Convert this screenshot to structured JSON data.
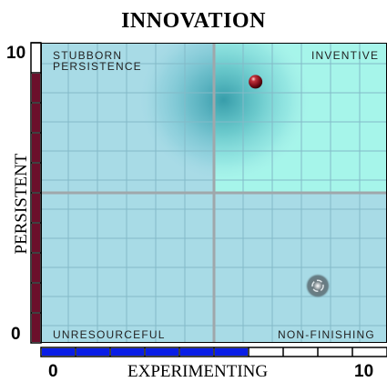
{
  "chart_data": {
    "type": "scatter",
    "title": "INNOVATION",
    "xlabel": "EXPERIMENTING",
    "ylabel": "PERSISTENT",
    "xlim": [
      0,
      10
    ],
    "ylim": [
      0,
      10
    ],
    "x_tick_labels": [
      "0",
      "10"
    ],
    "y_tick_labels": [
      "0",
      "10"
    ],
    "grid": true,
    "quadrants": {
      "top_left": [
        "STUBBORN",
        "PERSISTENCE"
      ],
      "top_right": "INVENTIVE",
      "bottom_left": "UNRESOURCEFUL",
      "bottom_right": "NON-FINISHING"
    },
    "highlighted_quadrant": "top_right",
    "points": [
      {
        "x": 6.2,
        "y": 8.7,
        "marker": "sphere",
        "color": "#8b1020"
      },
      {
        "x": 8.0,
        "y": 1.9,
        "marker": "swirl",
        "color": "#5a6a70"
      }
    ],
    "x_gauge": {
      "value": 6,
      "segments": 10,
      "filled_color": "#0a1ee6"
    },
    "y_gauge": {
      "value": 9,
      "segments": 10,
      "filled_color": "#6b0f2b"
    },
    "colors": {
      "plot_bg": "#a8dbe6",
      "highlight_bg": "#a6f5ea",
      "cloud": "#3aa5b3",
      "grid_minor": "#83bac8",
      "grid_major": "#9fa7ab"
    }
  }
}
